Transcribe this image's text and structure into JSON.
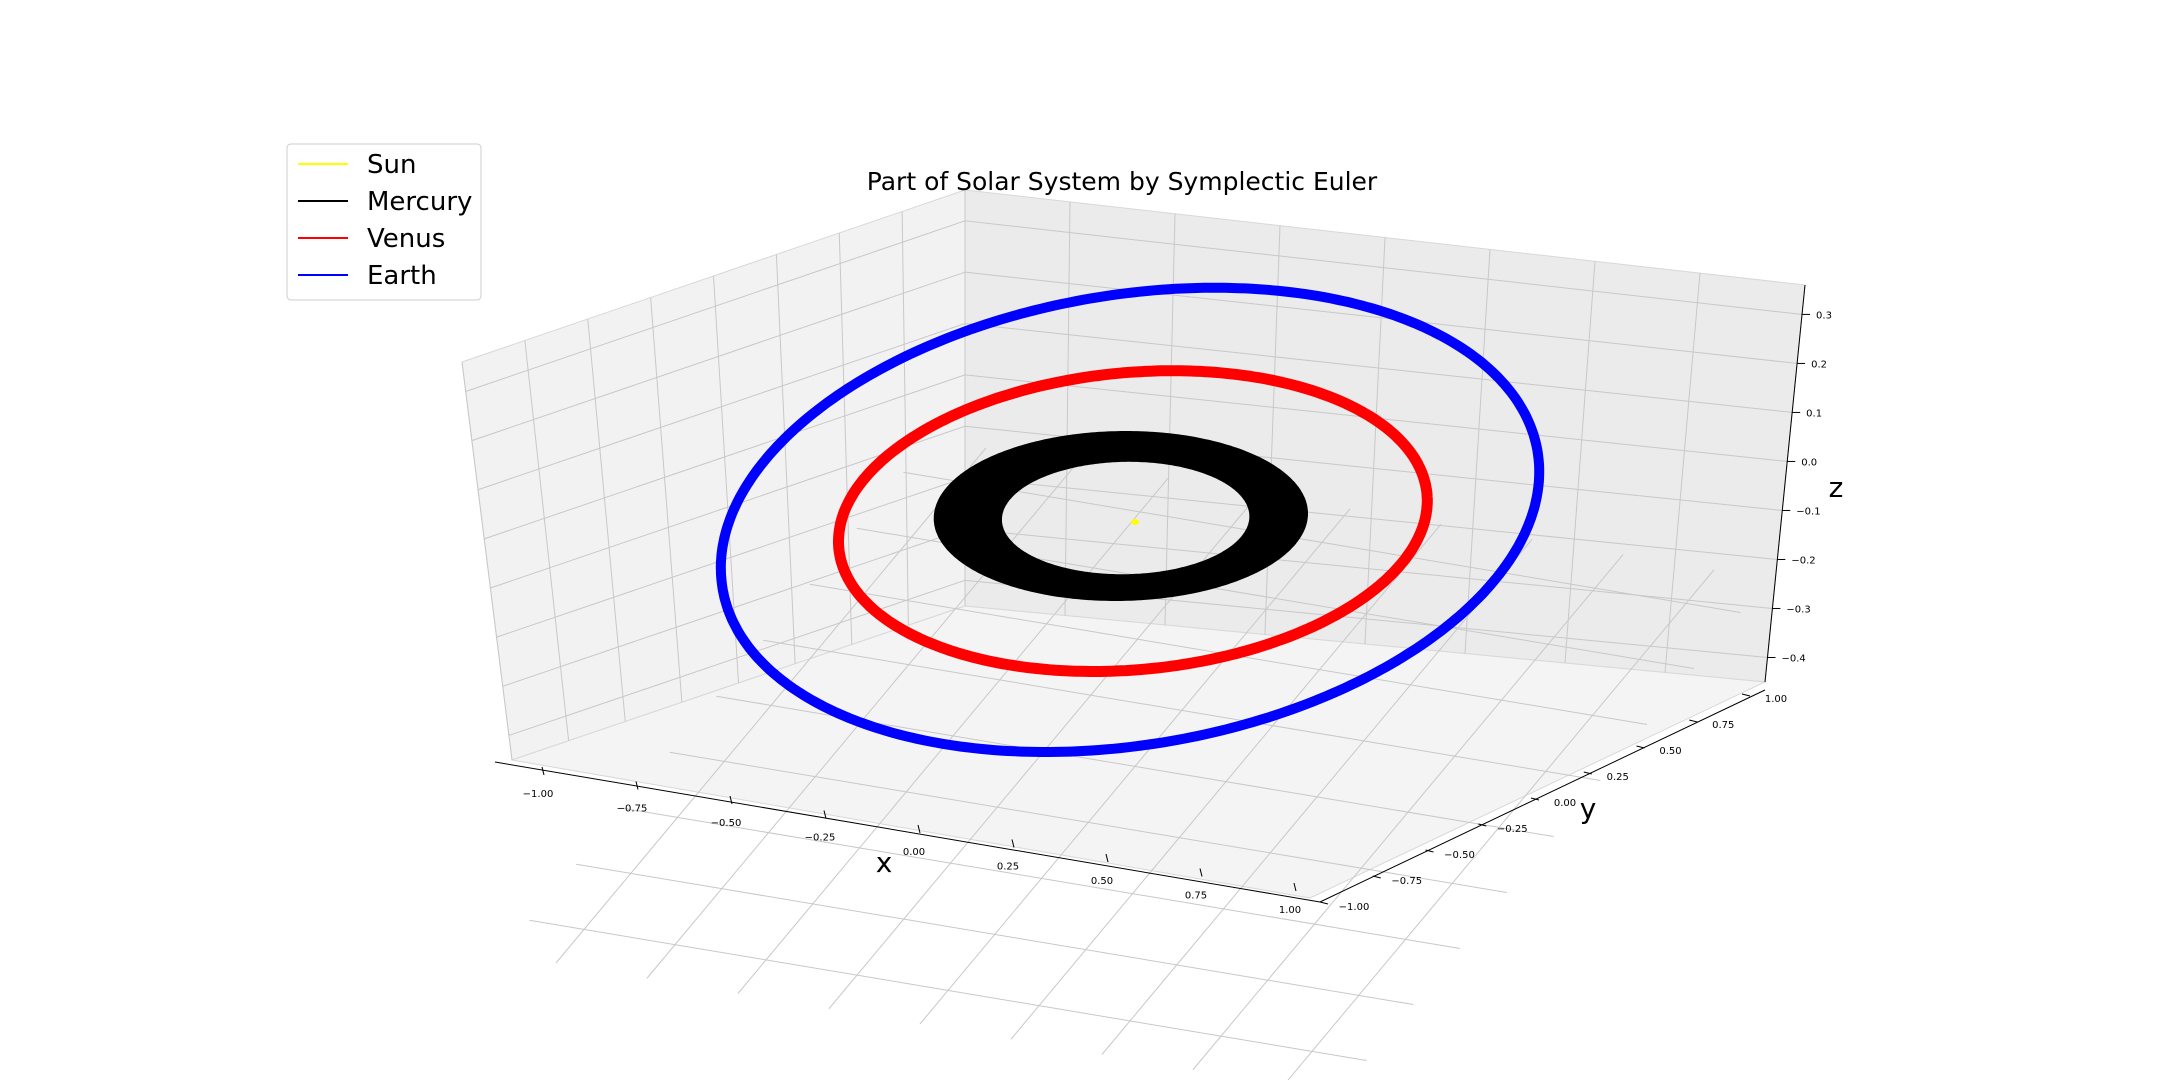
{
  "chart_data": {
    "type": "line",
    "projection": "3d",
    "title": "Part of Solar System by Symplectic Euler",
    "xlabel": "x",
    "ylabel": "y",
    "zlabel": "z",
    "xlim": [
      -1.15,
      1.15
    ],
    "ylim": [
      -1.15,
      1.15
    ],
    "zlim": [
      -0.42,
      0.38
    ],
    "x_ticks": [
      "−1.00",
      "−0.75",
      "−0.50",
      "−0.25",
      "0.00",
      "0.25",
      "0.50",
      "0.75",
      "1.00"
    ],
    "y_ticks": [
      "−1.00",
      "−0.75",
      "−0.50",
      "−0.25",
      "0.00",
      "0.25",
      "0.50",
      "0.75",
      "1.00"
    ],
    "z_ticks": [
      "0.3",
      "0.2",
      "0.1",
      "0.0",
      "−0.1",
      "−0.2",
      "−0.3",
      "−0.4"
    ],
    "grid": true,
    "legend_position": "upper-left",
    "series": [
      {
        "name": "Sun",
        "color": "#ffff00",
        "semi_major_axis": 0.0,
        "eccentricity": 0.0,
        "inclination_deg": 0.0
      },
      {
        "name": "Mercury",
        "color": "#000000",
        "semi_major_axis": 0.39,
        "eccentricity": 0.21,
        "inclination_deg": 7.0
      },
      {
        "name": "Venus",
        "color": "#ff0000",
        "semi_major_axis": 0.72,
        "eccentricity": 0.01,
        "inclination_deg": 3.4
      },
      {
        "name": "Earth",
        "color": "#0000ff",
        "semi_major_axis": 1.0,
        "eccentricity": 0.017,
        "inclination_deg": 0.0
      }
    ]
  }
}
